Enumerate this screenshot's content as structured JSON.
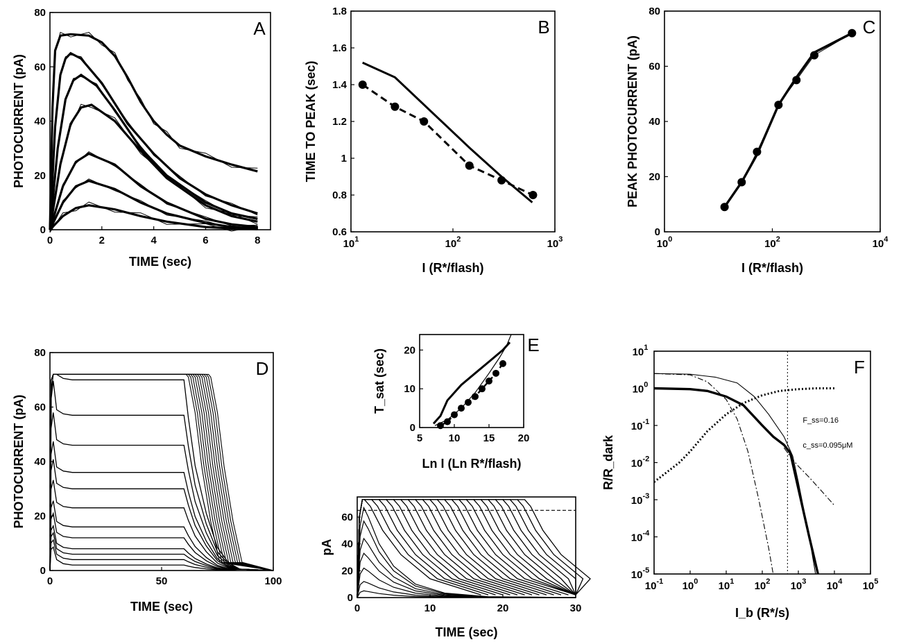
{
  "chart_data": [
    {
      "panel": "A",
      "type": "line",
      "xlabel": "TIME (sec)",
      "ylabel": "PHOTOCURRENT (pA)",
      "xlim": [
        0,
        8.5
      ],
      "ylim": [
        0,
        80
      ],
      "xticks": [
        "0",
        "2",
        "4",
        "6",
        "8"
      ],
      "yticks": [
        "0",
        "20",
        "40",
        "60",
        "80"
      ],
      "series": [
        {
          "amplitude": 72,
          "x": [
            0,
            0.1,
            0.2,
            0.4,
            0.8,
            1.5,
            2,
            2.5,
            3,
            3.5,
            4,
            4.5,
            5,
            6,
            7,
            8
          ],
          "values": [
            0,
            45,
            66,
            71.5,
            72,
            71.5,
            69,
            64,
            56,
            47,
            40,
            35,
            31,
            27,
            24,
            21.5
          ]
        },
        {
          "amplitude": 65,
          "x": [
            0,
            0.2,
            0.4,
            0.6,
            0.8,
            1.2,
            2,
            3,
            4,
            5,
            6,
            7,
            8
          ],
          "values": [
            0,
            38,
            57,
            63,
            65,
            63,
            54,
            39,
            28,
            19,
            13,
            9,
            6
          ]
        },
        {
          "amplitude": 57,
          "x": [
            0,
            0.3,
            0.6,
            0.9,
            1.2,
            1.8,
            2.5,
            3.5,
            4.5,
            6,
            7,
            8
          ],
          "values": [
            0,
            30,
            48,
            55,
            57,
            53,
            44,
            30,
            20,
            10,
            6,
            4
          ]
        },
        {
          "amplitude": 46,
          "x": [
            0,
            0.4,
            0.8,
            1.2,
            1.6,
            2.5,
            3.5,
            4.5,
            6,
            7,
            8
          ],
          "values": [
            0,
            24,
            39,
            45,
            46,
            40,
            29,
            19,
            9,
            5,
            3
          ]
        },
        {
          "amplitude": 28,
          "x": [
            0,
            0.5,
            1,
            1.5,
            2.5,
            3.5,
            4.5,
            6,
            7,
            8
          ],
          "values": [
            0,
            16,
            25,
            28,
            24,
            16,
            10,
            4,
            2,
            1
          ]
        },
        {
          "amplitude": 18,
          "x": [
            0,
            0.5,
            1,
            1.5,
            2.5,
            3.5,
            4.5,
            6,
            7,
            8
          ],
          "values": [
            0,
            10,
            16,
            18,
            15,
            10,
            6,
            2.5,
            1,
            0.5
          ]
        },
        {
          "amplitude": 9,
          "x": [
            0,
            0.5,
            1,
            1.5,
            2.5,
            3.5,
            4.5,
            6,
            7,
            8
          ],
          "values": [
            0,
            5,
            8,
            9,
            7.5,
            5,
            3,
            1,
            0.5,
            0.2
          ]
        }
      ]
    },
    {
      "panel": "B",
      "type": "line",
      "xscale": "log",
      "xlabel": "I (R*/flash)",
      "ylabel": "TIME TO PEAK (sec)",
      "xlim": [
        10,
        1000
      ],
      "ylim": [
        0.6,
        1.8
      ],
      "xticks": [
        "10^1",
        "10^2",
        "10^3"
      ],
      "yticks": [
        "0.6",
        "0.8",
        "1",
        "1.2",
        "1.4",
        "1.6",
        "1.8"
      ],
      "series": [
        {
          "style": "solid",
          "x": [
            13,
            27,
            150,
            300,
            600
          ],
          "values": [
            1.52,
            1.44,
            1.05,
            0.9,
            0.76
          ]
        },
        {
          "style": "dashed-markers",
          "x": [
            13,
            27,
            52,
            145,
            300,
            610
          ],
          "values": [
            1.4,
            1.28,
            1.2,
            0.96,
            0.88,
            0.8
          ]
        }
      ]
    },
    {
      "panel": "C",
      "type": "line",
      "xscale": "log",
      "xlabel": "I (R*/flash)",
      "ylabel": "PEAK PHOTOCURRENT (pA)",
      "xlim": [
        1,
        10000
      ],
      "ylim": [
        0,
        80
      ],
      "xticks": [
        "10^0",
        "10^2",
        "10^4"
      ],
      "yticks": [
        "0",
        "20",
        "40",
        "60",
        "80"
      ],
      "series": [
        {
          "style": "solid",
          "x": [
            13,
            27,
            52,
            130,
            280,
            600,
            3000
          ],
          "values": [
            9,
            18,
            28,
            46,
            56,
            65,
            72
          ]
        },
        {
          "style": "markers",
          "x": [
            13,
            27,
            52,
            130,
            280,
            600,
            3000
          ],
          "values": [
            9,
            18,
            29,
            46,
            55,
            64,
            72
          ]
        }
      ]
    },
    {
      "panel": "D",
      "type": "line",
      "xlabel": "TIME (sec)",
      "ylabel": "PHOTOCURRENT (pA)",
      "xlim": [
        0,
        100
      ],
      "ylim": [
        0,
        80
      ],
      "xticks": [
        "0",
        "50",
        "100"
      ],
      "yticks": [
        "0",
        "20",
        "40",
        "60",
        "80"
      ],
      "steady_levels": [
        70,
        57,
        46,
        36,
        30,
        23,
        16,
        12,
        8,
        6,
        4,
        2
      ],
      "saturated_offsets": [
        62,
        63,
        64,
        65,
        66,
        67,
        68,
        69,
        70,
        71,
        72
      ]
    },
    {
      "panel": "E",
      "type": "line",
      "xlabel": "Ln I (Ln R*/flash)",
      "ylabel": "T_sat (sec)",
      "xlim": [
        5,
        20
      ],
      "ylim": [
        0,
        24
      ],
      "xticks": [
        "5",
        "10",
        "15",
        "20"
      ],
      "yticks": [
        "0",
        "10",
        "20"
      ],
      "series": [
        {
          "style": "solid",
          "x": [
            7,
            8,
            9,
            11,
            13,
            15,
            17,
            18
          ],
          "values": [
            1,
            3,
            7,
            11,
            14,
            17,
            20,
            22
          ]
        },
        {
          "style": "thin",
          "x": [
            7.2,
            9,
            11,
            13,
            15,
            16.5,
            17.5,
            18.2
          ],
          "values": [
            0.5,
            2,
            5,
            9,
            14,
            18,
            21,
            24
          ]
        },
        {
          "style": "dashed-markers",
          "x": [
            8,
            9,
            10,
            11,
            12,
            13,
            14,
            15,
            16,
            17
          ],
          "values": [
            0.5,
            1.5,
            3.3,
            5,
            6.5,
            8,
            10,
            12,
            14,
            16.5
          ]
        }
      ]
    },
    {
      "panel": "E-inset",
      "type": "line",
      "xlabel": "TIME (sec)",
      "ylabel": "pA",
      "xlim": [
        0,
        30
      ],
      "ylim": [
        0,
        75
      ],
      "xticks": [
        "0",
        "10",
        "20",
        "30"
      ],
      "yticks": [
        "0",
        "20",
        "40",
        "60"
      ],
      "dashed_level": 65,
      "curve_peaks": [
        5,
        12,
        22,
        33,
        44,
        57,
        67
      ],
      "saturation_times": [
        1,
        2,
        3,
        4,
        5,
        6,
        7,
        8,
        9,
        10,
        11,
        12,
        13,
        14,
        15,
        16,
        17,
        18,
        19,
        20,
        21,
        22,
        23
      ]
    },
    {
      "panel": "F",
      "type": "line",
      "xscale": "log",
      "yscale": "log",
      "xlabel": "I_b (R*/s)",
      "ylabel": "R/R_dark",
      "xlim": [
        0.1,
        100000
      ],
      "ylim": [
        1e-05,
        10
      ],
      "xticks": [
        "10^-1",
        "10^0",
        "10^1",
        "10^2",
        "10^3",
        "10^4",
        "10^5"
      ],
      "yticks": [
        "10^-5",
        "10^-4",
        "10^-3",
        "10^-2",
        "10^-1",
        "10^0",
        "10^1"
      ],
      "annotations": [
        "F_ss=0.16",
        "c_ss=0.095μM"
      ],
      "vline_x": 500,
      "series": [
        {
          "style": "thick",
          "x": [
            0.1,
            1,
            3,
            10,
            30,
            100,
            200,
            400,
            600,
            1000,
            2000,
            3500
          ],
          "values": [
            1,
            0.95,
            0.85,
            0.6,
            0.35,
            0.1,
            0.05,
            0.03,
            0.018,
            0.002,
            0.0001,
            1e-05
          ]
        },
        {
          "style": "thin",
          "x": [
            0.1,
            1,
            5,
            20,
            60,
            150,
            400,
            700,
            1000,
            2000,
            3000
          ],
          "values": [
            2.5,
            2.4,
            2,
            1.4,
            0.6,
            0.2,
            0.05,
            0.015,
            0.003,
            0.0001,
            1e-05
          ]
        },
        {
          "style": "dash-dot",
          "x": [
            0.1,
            1,
            3,
            10,
            20,
            40,
            80,
            150,
            200
          ],
          "values": [
            2.5,
            2.3,
            1.5,
            0.5,
            0.15,
            0.02,
            0.001,
            5e-05,
            1e-05
          ]
        },
        {
          "style": "dash-dot",
          "x": [
            400,
            700,
            1000,
            2000,
            5000,
            10000
          ],
          "values": [
            0.025,
            0.012,
            0.008,
            0.004,
            0.0015,
            0.0007
          ]
        },
        {
          "style": "dotted",
          "x": [
            0.1,
            0.5,
            1,
            3,
            10,
            30,
            100,
            300,
            1000,
            3000,
            10000
          ],
          "values": [
            0.003,
            0.01,
            0.02,
            0.07,
            0.2,
            0.4,
            0.65,
            0.85,
            0.95,
            1,
            1
          ]
        }
      ]
    }
  ]
}
